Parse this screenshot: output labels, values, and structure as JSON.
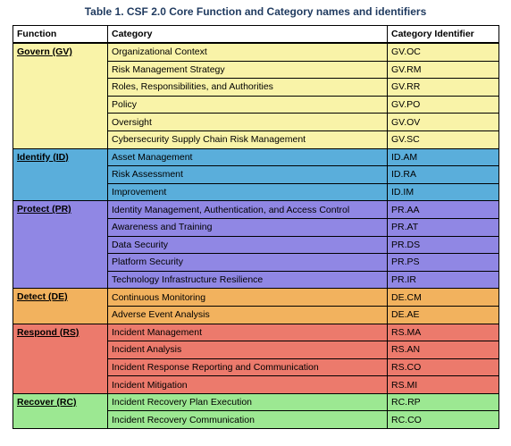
{
  "caption": "Table 1. CSF 2.0 Core Function and Category names and identifiers",
  "headers": {
    "function": "Function",
    "category": "Category",
    "identifier": "Category Identifier"
  },
  "colors": {
    "header": "#ffffff",
    "govern": "#f9f3a8",
    "identify": "#5aaedb",
    "protect": "#9087e4",
    "detect": "#f2b25e",
    "respond": "#ec7a6c",
    "recover": "#9ce892",
    "caption": "#1f3a5f"
  },
  "functions": [
    {
      "key": "govern",
      "name": "Govern (GV)",
      "categories": [
        {
          "name": "Organizational Context",
          "id": "GV.OC"
        },
        {
          "name": "Risk Management Strategy",
          "id": "GV.RM"
        },
        {
          "name": "Roles, Responsibilities, and Authorities",
          "id": "GV.RR"
        },
        {
          "name": "Policy",
          "id": "GV.PO"
        },
        {
          "name": "Oversight",
          "id": "GV.OV"
        },
        {
          "name": "Cybersecurity Supply Chain Risk Management",
          "id": "GV.SC"
        }
      ]
    },
    {
      "key": "identify",
      "name": "Identify (ID)",
      "categories": [
        {
          "name": "Asset Management",
          "id": "ID.AM"
        },
        {
          "name": "Risk Assessment",
          "id": "ID.RA"
        },
        {
          "name": "Improvement",
          "id": "ID.IM"
        }
      ]
    },
    {
      "key": "protect",
      "name": "Protect (PR)",
      "categories": [
        {
          "name": "Identity Management, Authentication, and Access Control",
          "id": "PR.AA"
        },
        {
          "name": "Awareness and Training",
          "id": "PR.AT"
        },
        {
          "name": "Data Security",
          "id": "PR.DS"
        },
        {
          "name": "Platform Security",
          "id": "PR.PS"
        },
        {
          "name": "Technology Infrastructure Resilience",
          "id": "PR.IR"
        }
      ]
    },
    {
      "key": "detect",
      "name": "Detect (DE)",
      "categories": [
        {
          "name": "Continuous Monitoring",
          "id": "DE.CM"
        },
        {
          "name": "Adverse Event Analysis",
          "id": "DE.AE"
        }
      ]
    },
    {
      "key": "respond",
      "name": "Respond (RS)",
      "categories": [
        {
          "name": "Incident Management",
          "id": "RS.MA"
        },
        {
          "name": "Incident Analysis",
          "id": "RS.AN"
        },
        {
          "name": "Incident Response Reporting and Communication",
          "id": "RS.CO"
        },
        {
          "name": "Incident Mitigation",
          "id": "RS.MI"
        }
      ]
    },
    {
      "key": "recover",
      "name": "Recover (RC)",
      "categories": [
        {
          "name": "Incident Recovery Plan Execution",
          "id": "RC.RP"
        },
        {
          "name": "Incident Recovery Communication",
          "id": "RC.CO"
        }
      ]
    }
  ]
}
